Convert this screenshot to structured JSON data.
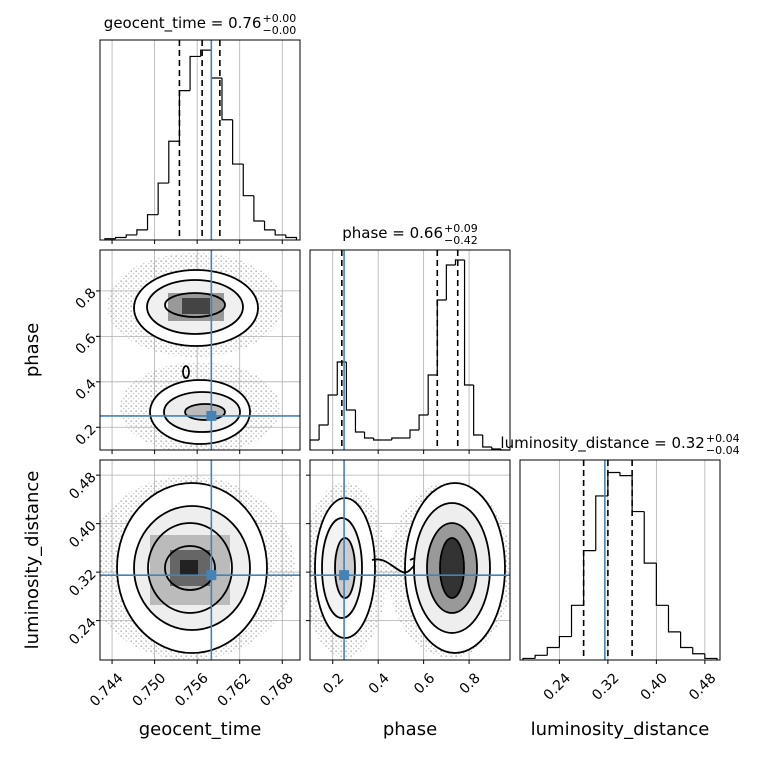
{
  "chart_data": {
    "type": "corner",
    "grid": true,
    "truth_color": "#4682b4",
    "hist_color": "#000000",
    "parameters": [
      {
        "name": "geocent_time",
        "title": "geocent_time = 0.76",
        "title_upper": "+0.00",
        "title_lower": "−0.00",
        "lim": [
          0.7423,
          0.7705
        ],
        "ticks": [
          0.744,
          {
            "value": 0.75,
            "label": "0.750"
          },
          0.756,
          0.762,
          0.768
        ],
        "truth": 0.758,
        "quantiles": [
          0.7535,
          0.7567,
          0.7592
        ],
        "bins": [
          0.743,
          0.7445,
          0.746,
          0.7475,
          0.749,
          0.7505,
          0.752,
          0.7535,
          0.755,
          0.7565,
          0.758,
          0.7595,
          0.761,
          0.7625,
          0.764,
          0.7655,
          0.767,
          0.7685,
          0.77
        ],
        "counts": [
          1,
          2,
          4,
          8,
          20,
          45,
          78,
          118,
          145,
          150,
          128,
          95,
          60,
          35,
          15,
          8,
          4,
          2
        ],
        "hist_ylim": [
          0,
          158
        ]
      },
      {
        "name": "phase",
        "title": "phase = 0.66",
        "title_upper": "+0.09",
        "title_lower": "−0.42",
        "lim": [
          0.1,
          0.98
        ],
        "ticks": [
          0.2,
          0.4,
          0.6,
          0.8
        ],
        "truth": 0.25,
        "quantiles": [
          0.24,
          0.66,
          0.75
        ],
        "bins": [
          0.1,
          0.14,
          0.18,
          0.22,
          0.26,
          0.3,
          0.34,
          0.38,
          0.42,
          0.46,
          0.5,
          0.54,
          0.58,
          0.62,
          0.66,
          0.7,
          0.74,
          0.78,
          0.82,
          0.86,
          0.9,
          0.94,
          0.98
        ],
        "counts": [
          10,
          25,
          55,
          88,
          40,
          18,
          12,
          10,
          10,
          12,
          12,
          20,
          35,
          75,
          150,
          185,
          190,
          65,
          15,
          3,
          1,
          0
        ],
        "hist_ylim": [
          0,
          200
        ]
      },
      {
        "name": "luminosity_distance",
        "title": "luminosity_distance = 0.32",
        "title_upper": "+0.04",
        "title_lower": "−0.04",
        "lim": [
          0.175,
          0.505
        ],
        "ticks": [
          0.24,
          0.32,
          {
            "value": 0.4,
            "label": "0.40"
          },
          0.48
        ],
        "truth": 0.315,
        "quantiles": [
          0.28,
          0.32,
          0.36
        ],
        "bins": [
          0.18,
          0.2,
          0.22,
          0.24,
          0.26,
          0.28,
          0.3,
          0.32,
          0.34,
          0.36,
          0.38,
          0.4,
          0.42,
          0.44,
          0.46,
          0.48,
          0.5
        ],
        "counts": [
          1,
          3,
          8,
          15,
          35,
          70,
          105,
          120,
          118,
          95,
          62,
          35,
          18,
          8,
          4,
          1
        ],
        "hist_ylim": [
          0,
          128
        ]
      }
    ]
  }
}
